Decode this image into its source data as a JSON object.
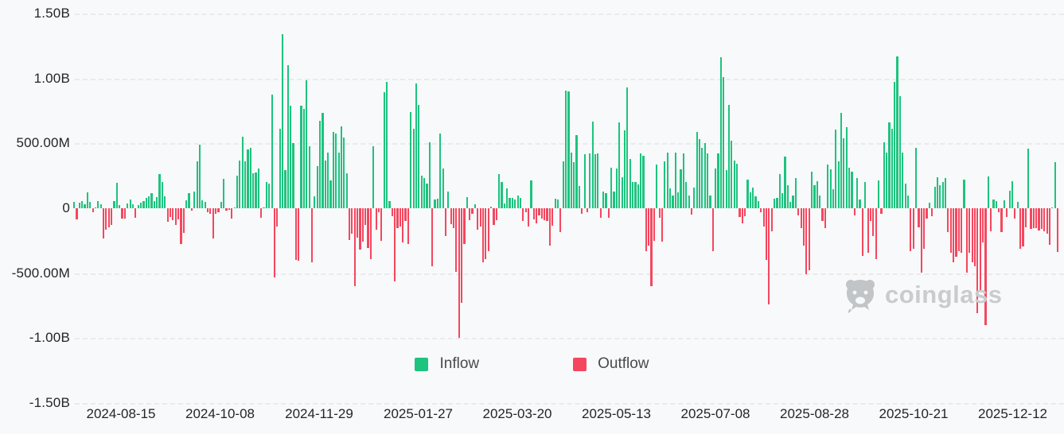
{
  "watermark": {
    "text": "coinglass"
  },
  "colors": {
    "inflow": "#1dc37e",
    "outflow": "#f4475f",
    "grid": "#e9eaec",
    "axis_text": "#252525",
    "legend_text": "#4a4a4a",
    "watermark": "#c9ccce",
    "background": "#f8f9fa"
  },
  "chart_data": {
    "type": "bar",
    "title": "",
    "xlabel": "",
    "ylabel": "",
    "grid": "horizontal-dashed",
    "legend_position": "bottom-center",
    "value_unit": "millions USD",
    "ylim_m": [
      -1500,
      1500
    ],
    "y_ticks": [
      {
        "label": "1.50B",
        "value_m": 1500
      },
      {
        "label": "1.00B",
        "value_m": 1000
      },
      {
        "label": "500.00M",
        "value_m": 500
      },
      {
        "label": "0",
        "value_m": 0
      },
      {
        "label": "-500.00M",
        "value_m": -500
      },
      {
        "label": "-1.00B",
        "value_m": -1000
      },
      {
        "label": "-1.50B",
        "value_m": -1500
      }
    ],
    "x_tick_labels": [
      "2024-08-15",
      "2024-10-08",
      "2024-11-29",
      "2025-01-27",
      "2025-03-20",
      "2025-05-13",
      "2025-07-08",
      "2025-08-28",
      "2025-10-21",
      "2025-12-12"
    ],
    "legend": [
      {
        "label": "Inflow",
        "color_key": "inflow"
      },
      {
        "label": "Outflow",
        "color_key": "outflow"
      }
    ],
    "series_note": "daily net flow; positive = Inflow (green), negative = Outflow (red); values in millions USD, estimated from gridlines",
    "values_m": [
      50,
      -85,
      43,
      57,
      33,
      122,
      49,
      -29,
      5,
      53,
      29,
      -233,
      -167,
      -147,
      -127,
      53,
      196,
      22,
      -82,
      -82,
      37,
      69,
      33,
      -73,
      22,
      43,
      57,
      78,
      94,
      118,
      53,
      84,
      261,
      200,
      90,
      -106,
      -69,
      -94,
      -131,
      -86,
      -273,
      -192,
      63,
      114,
      -18,
      130,
      363,
      492,
      63,
      49,
      -29,
      -45,
      -233,
      -45,
      -29,
      49,
      227,
      -18,
      -12,
      -80,
      8,
      253,
      369,
      549,
      363,
      451,
      465,
      267,
      277,
      308,
      -73,
      5,
      200,
      192,
      877,
      -530,
      -140,
      613,
      1343,
      294,
      1104,
      791,
      500,
      -396,
      -406,
      790,
      765,
      987,
      480,
      -416,
      94,
      322,
      675,
      736,
      369,
      430,
      216,
      590,
      575,
      430,
      628,
      545,
      270,
      -245,
      -195,
      -600,
      -225,
      -320,
      -260,
      -130,
      -305,
      -390,
      475,
      -165,
      -30,
      -250,
      895,
      971,
      55,
      -60,
      -560,
      -155,
      -140,
      -265,
      -95,
      -275,
      740,
      615,
      960,
      794,
      250,
      230,
      190,
      510,
      -447,
      65,
      75,
      577,
      305,
      -215,
      130,
      -120,
      -155,
      -490,
      -1000,
      -730,
      -275,
      85,
      -90,
      -45,
      30,
      -165,
      -140,
      -415,
      -390,
      -330,
      15,
      -130,
      -90,
      265,
      200,
      35,
      150,
      80,
      80,
      65,
      95,
      80,
      -95,
      -30,
      -140,
      212,
      -85,
      -115,
      -55,
      -80,
      -90,
      -100,
      -290,
      -135,
      75,
      70,
      -185,
      360,
      904,
      900,
      430,
      355,
      563,
      170,
      -40,
      414,
      -30,
      420,
      665,
      415,
      420,
      -75,
      130,
      115,
      -75,
      310,
      130,
      305,
      660,
      240,
      598,
      930,
      380,
      205,
      200,
      185,
      420,
      405,
      -330,
      -290,
      -600,
      -250,
      335,
      -75,
      -255,
      360,
      430,
      150,
      100,
      430,
      120,
      300,
      420,
      200,
      95,
      -50,
      160,
      585,
      530,
      465,
      502,
      425,
      95,
      -330,
      305,
      420,
      1165,
      1012,
      295,
      798,
      520,
      365,
      345,
      -70,
      -115,
      -60,
      220,
      125,
      160,
      90,
      55,
      -30,
      -140,
      -400,
      -739,
      -175,
      75,
      80,
      265,
      115,
      395,
      180,
      50,
      95,
      235,
      -55,
      -155,
      -285,
      -508,
      -477,
      280,
      175,
      210,
      100,
      -95,
      -155,
      335,
      300,
      145,
      605,
      363,
      732,
      540,
      624,
      310,
      280,
      -55,
      230,
      70,
      -365,
      205,
      -340,
      -95,
      -212,
      -390,
      215,
      -45,
      505,
      430,
      660,
      615,
      975,
      1170,
      864,
      430,
      190,
      98,
      -330,
      -310,
      466,
      -145,
      -498,
      -310,
      -80,
      45,
      -60,
      165,
      240,
      175,
      205,
      233,
      -185,
      -340,
      -415,
      -375,
      -330,
      -340,
      220,
      -494,
      -340,
      -415,
      -445,
      -810,
      -630,
      -265,
      -900,
      243,
      -175,
      65,
      55,
      -30,
      -185,
      60,
      -70,
      135,
      206,
      -80,
      50,
      -310,
      -296,
      -145,
      457,
      -160,
      -155,
      -150,
      -170,
      -160,
      -175,
      -195,
      -280,
      8,
      353,
      -339
    ]
  }
}
